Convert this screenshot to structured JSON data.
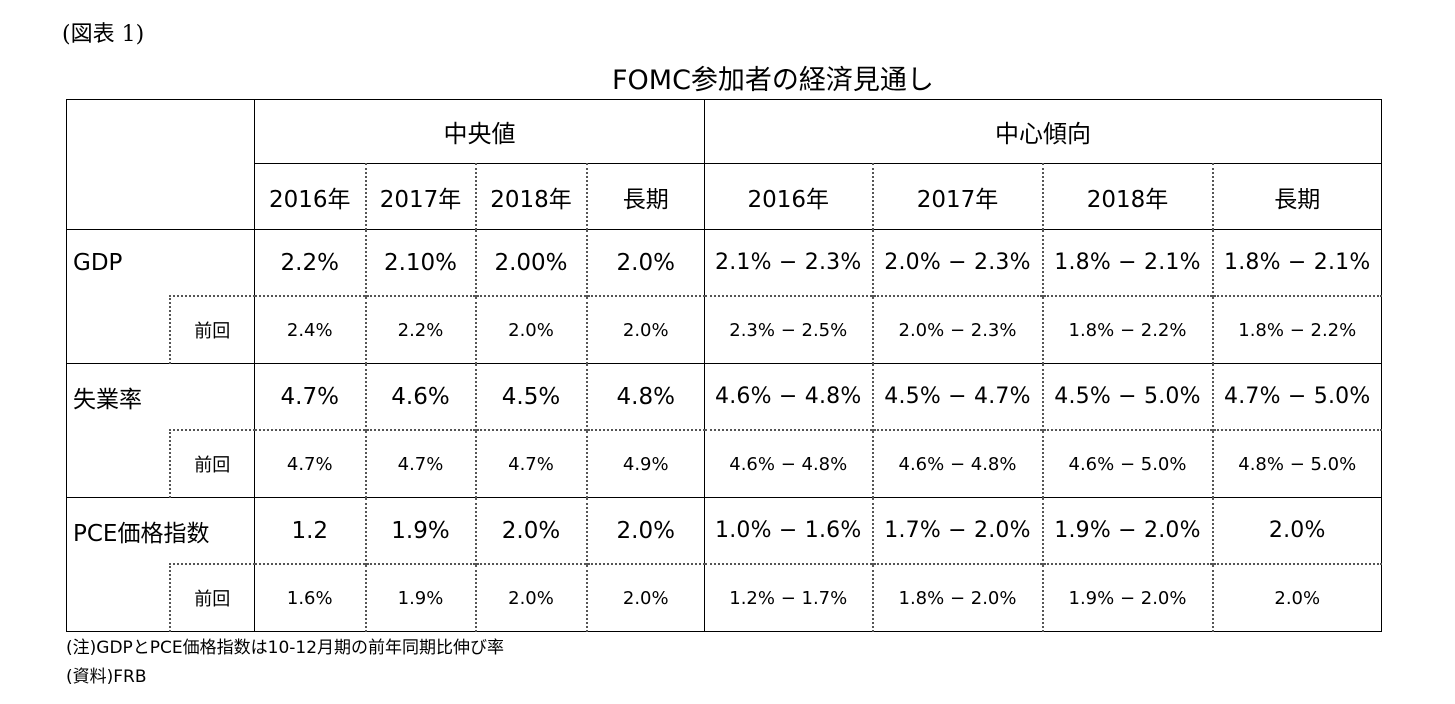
{
  "figure_label": "(図表 1)",
  "title": "FOMC参加者の経済見通し",
  "headers": {
    "group_median": "中央値",
    "group_central": "中心傾向",
    "columns": [
      "2016年",
      "2017年",
      "2018年",
      "長期",
      "2016年",
      "2017年",
      "2018年",
      "長期"
    ]
  },
  "rows": [
    {
      "label": "GDP",
      "values": [
        "2.2%",
        "2.10%",
        "2.00%",
        "2.0%",
        "2.1% − 2.3%",
        "2.0% − 2.3%",
        "1.8% − 2.1%",
        "1.8% − 2.1%"
      ],
      "prev_label": "前回",
      "prev_values": [
        "2.4%",
        "2.2%",
        "2.0%",
        "2.0%",
        "2.3% − 2.5%",
        "2.0% − 2.3%",
        "1.8% − 2.2%",
        "1.8% − 2.2%"
      ]
    },
    {
      "label": "失業率",
      "values": [
        "4.7%",
        "4.6%",
        "4.5%",
        "4.8%",
        "4.6% − 4.8%",
        "4.5% − 4.7%",
        "4.5% − 5.0%",
        "4.7% − 5.0%"
      ],
      "prev_label": "前回",
      "prev_values": [
        "4.7%",
        "4.7%",
        "4.7%",
        "4.9%",
        "4.6% − 4.8%",
        "4.6% − 4.8%",
        "4.6% − 5.0%",
        "4.8% − 5.0%"
      ]
    },
    {
      "label": "PCE価格指数",
      "values": [
        "1.2",
        "1.9%",
        "2.0%",
        "2.0%",
        "1.0% − 1.6%",
        "1.7% − 2.0%",
        "1.9% − 2.0%",
        "2.0%"
      ],
      "prev_label": "前回",
      "prev_values": [
        "1.6%",
        "1.9%",
        "2.0%",
        "2.0%",
        "1.2% − 1.7%",
        "1.8% − 2.0%",
        "1.9% − 2.0%",
        "2.0%"
      ]
    }
  ],
  "notes": {
    "note": "(注)GDPとPCE価格指数は10-12月期の前年同期比伸び率",
    "source": "(資料)FRB"
  }
}
